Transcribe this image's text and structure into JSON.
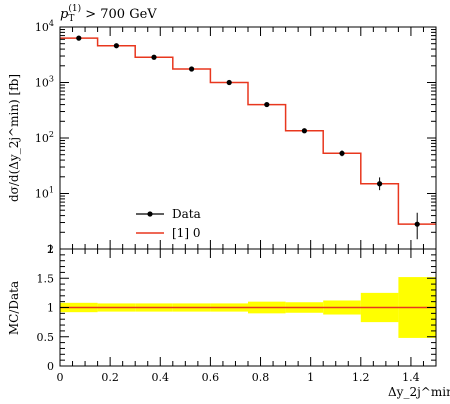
{
  "chart_data": [
    {
      "type": "line",
      "title": "p_T^(1) > 700 GeV",
      "title_parts": {
        "symbol": "p",
        "subscript": "T",
        "superscript": "(1)",
        "text": " > 700 GeV"
      },
      "ylabel": "dσ/d(Δy_2j^min) [fb]",
      "y_scale": "log",
      "ylim": [
        1,
        10000
      ],
      "y_tick_labels": [
        "1",
        "10",
        "10",
        "10",
        "10"
      ],
      "y_tick_exponents": [
        "",
        "1",
        "2",
        "3",
        "4"
      ],
      "xlim": [
        0,
        1.5
      ],
      "x_edges": [
        0,
        0.15,
        0.3,
        0.45,
        0.6,
        0.75,
        0.9,
        1.05,
        1.2,
        1.35,
        1.5
      ],
      "series": [
        {
          "name": "Data",
          "style": "points",
          "color": "#000000",
          "x": [
            0.075,
            0.225,
            0.375,
            0.525,
            0.675,
            0.825,
            0.975,
            1.125,
            1.275,
            1.425
          ],
          "y": [
            6300,
            4600,
            2850,
            1750,
            1000,
            400,
            135,
            53,
            15,
            2.8
          ],
          "yerr_low": [
            6000,
            4400,
            2750,
            1680,
            960,
            375,
            125,
            47,
            11.5,
            1.5
          ],
          "yerr_high": [
            6600,
            4800,
            2950,
            1820,
            1040,
            425,
            145,
            60,
            19.5,
            4.5
          ]
        },
        {
          "name": "[1] 0",
          "style": "histogram",
          "color": "#e8371e",
          "y": [
            6300,
            4600,
            2850,
            1750,
            1000,
            400,
            135,
            53,
            15,
            2.8
          ]
        }
      ],
      "legend_position": "bottom-left"
    },
    {
      "type": "line",
      "ylabel": "MC/Data",
      "xlabel": "Δy_2j^min",
      "ylim": [
        0,
        2
      ],
      "y_tick_labels": [
        "0",
        "0.5",
        "1",
        "1.5",
        "2"
      ],
      "x_tick_labels": [
        "0",
        "0.2",
        "0.4",
        "0.6",
        "0.8",
        "1",
        "1.2",
        "1.4"
      ],
      "x_edges": [
        0,
        0.15,
        0.3,
        0.45,
        0.6,
        0.75,
        0.9,
        1.05,
        1.2,
        1.35,
        1.5
      ],
      "band_color": "#ffff00",
      "band_low": [
        0.92,
        0.93,
        0.93,
        0.93,
        0.93,
        0.9,
        0.91,
        0.88,
        0.75,
        0.48
      ],
      "band_high": [
        1.08,
        1.07,
        1.07,
        1.07,
        1.07,
        1.1,
        1.09,
        1.12,
        1.25,
        1.52
      ],
      "ratio": [
        1,
        1,
        1,
        1,
        1,
        1,
        1,
        1,
        1,
        1
      ],
      "ratio_color": "#e8371e"
    }
  ]
}
